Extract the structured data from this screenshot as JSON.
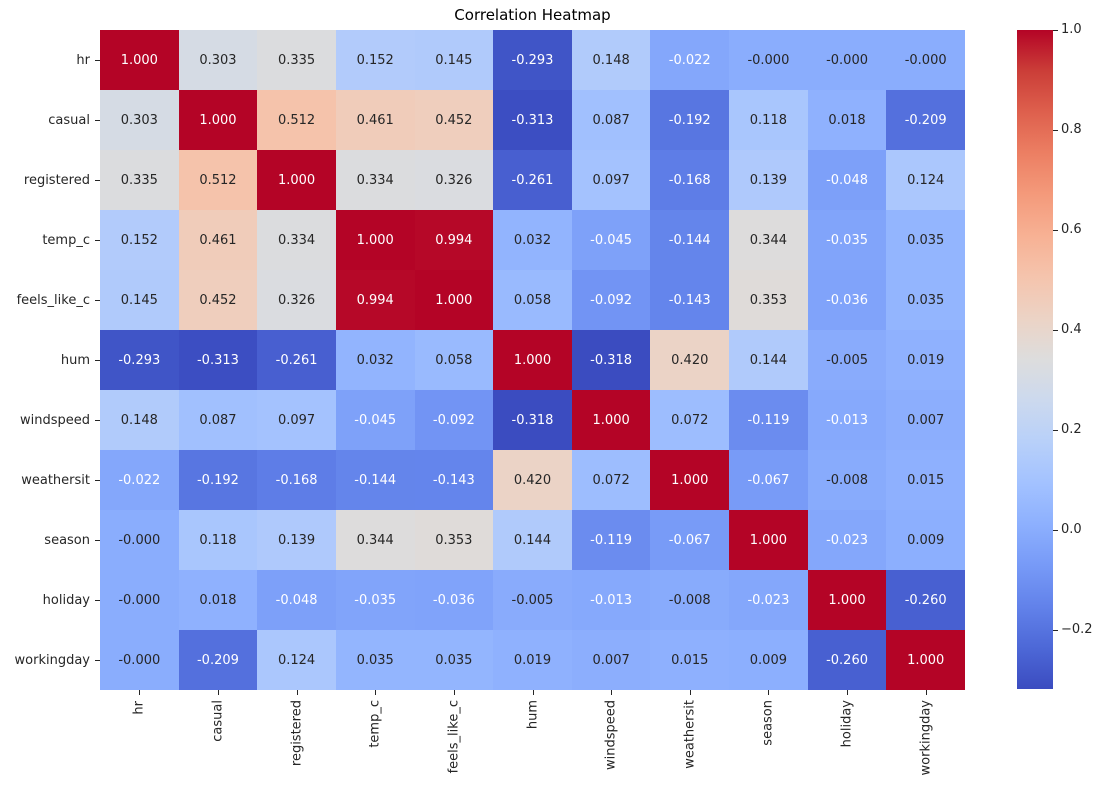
{
  "title": "Correlation Heatmap",
  "chart_data": {
    "type": "heatmap",
    "title": "Correlation Heatmap",
    "categories": [
      "hr",
      "casual",
      "registered",
      "temp_c",
      "feels_like_c",
      "hum",
      "windspeed",
      "weathersit",
      "season",
      "holiday",
      "workingday"
    ],
    "matrix": [
      [
        "1.000",
        "0.303",
        "0.335",
        "0.152",
        "0.145",
        "-0.293",
        "0.148",
        "-0.022",
        "-0.000",
        "-0.000",
        "-0.000"
      ],
      [
        "0.303",
        "1.000",
        "0.512",
        "0.461",
        "0.452",
        "-0.313",
        "0.087",
        "-0.192",
        "0.118",
        "0.018",
        "-0.209"
      ],
      [
        "0.335",
        "0.512",
        "1.000",
        "0.334",
        "0.326",
        "-0.261",
        "0.097",
        "-0.168",
        "0.139",
        "-0.048",
        "0.124"
      ],
      [
        "0.152",
        "0.461",
        "0.334",
        "1.000",
        "0.994",
        "0.032",
        "-0.045",
        "-0.144",
        "0.344",
        "-0.035",
        "0.035"
      ],
      [
        "0.145",
        "0.452",
        "0.326",
        "0.994",
        "1.000",
        "0.058",
        "-0.092",
        "-0.143",
        "0.353",
        "-0.036",
        "0.035"
      ],
      [
        "-0.293",
        "-0.313",
        "-0.261",
        "0.032",
        "0.058",
        "1.000",
        "-0.318",
        "0.420",
        "0.144",
        "-0.005",
        "0.019"
      ],
      [
        "0.148",
        "0.087",
        "0.097",
        "-0.045",
        "-0.092",
        "-0.318",
        "1.000",
        "0.072",
        "-0.119",
        "-0.013",
        "0.007"
      ],
      [
        "-0.022",
        "-0.192",
        "-0.168",
        "-0.144",
        "-0.143",
        "0.420",
        "0.072",
        "1.000",
        "-0.067",
        "-0.008",
        "0.015"
      ],
      [
        "-0.000",
        "0.118",
        "0.139",
        "0.344",
        "0.353",
        "0.144",
        "-0.119",
        "-0.067",
        "1.000",
        "-0.023",
        "0.009"
      ],
      [
        "-0.000",
        "0.018",
        "-0.048",
        "-0.035",
        "-0.036",
        "-0.005",
        "-0.013",
        "-0.008",
        "-0.023",
        "1.000",
        "-0.260"
      ],
      [
        "-0.000",
        "-0.209",
        "0.124",
        "0.035",
        "0.035",
        "0.019",
        "0.007",
        "0.015",
        "0.009",
        "-0.260",
        "1.000"
      ]
    ],
    "colormap": "coolwarm",
    "vmin": -0.318,
    "vmax": 1.0,
    "colorbar_ticks": [
      {
        "value": 1.0,
        "label": "1.0"
      },
      {
        "value": 0.8,
        "label": "0.8"
      },
      {
        "value": 0.6,
        "label": "0.6"
      },
      {
        "value": 0.4,
        "label": "0.4"
      },
      {
        "value": 0.2,
        "label": "0.2"
      },
      {
        "value": 0.0,
        "label": "0.0"
      },
      {
        "value": -0.2,
        "label": "−0.2"
      }
    ],
    "legend_position": "right",
    "grid": false,
    "colors": {
      "annotation_dark": "#262626",
      "annotation_light": "#ffffff",
      "tick": "#262626",
      "background": "#ffffff"
    }
  }
}
